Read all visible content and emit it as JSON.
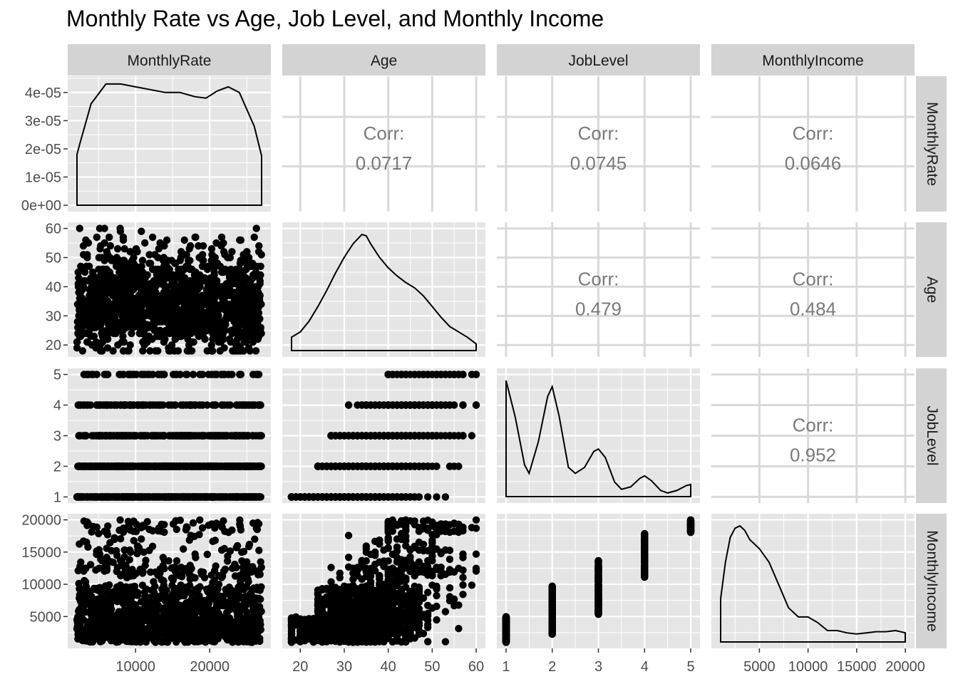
{
  "title": "Monthly Rate vs Age, Job Level, and Monthly Income",
  "chart_data": {
    "type": "scatter",
    "subtype": "pairs-matrix",
    "title": "Monthly Rate vs Age, Job Level, and Monthly Income",
    "variables": [
      "MonthlyRate",
      "Age",
      "JobLevel",
      "MonthlyIncome"
    ],
    "theme": {
      "panel_background": "#e5e5e5",
      "grid_color": "#ffffff",
      "strip_background": "#d3d3d3",
      "point_color": "#000000",
      "correlation_text_color": "#7a7a7a"
    },
    "axes": {
      "MonthlyRate": {
        "range": [
          2094,
          26999
        ],
        "ticks": [
          10000,
          20000
        ],
        "tick_labels": [
          "10000",
          "20000"
        ]
      },
      "Age": {
        "range": [
          18,
          60
        ],
        "ticks": [
          20,
          30,
          40,
          50,
          60
        ],
        "tick_labels": [
          "20",
          "30",
          "40",
          "50",
          "60"
        ]
      },
      "JobLevel": {
        "range": [
          1,
          5
        ],
        "ticks": [
          1,
          2,
          3,
          4,
          5
        ],
        "tick_labels": [
          "1",
          "2",
          "3",
          "4",
          "5"
        ]
      },
      "MonthlyIncome": {
        "range": [
          1009,
          19999
        ],
        "ticks": [
          5000,
          10000,
          15000,
          20000
        ],
        "tick_labels": [
          "5000",
          "10000",
          "15000",
          "20000"
        ]
      }
    },
    "density_axis": {
      "ylim": [
        0,
        4.5e-05
      ],
      "ticks": [
        0,
        1e-05,
        2e-05,
        3e-05,
        4e-05
      ],
      "tick_labels": [
        "0e+00",
        "1e-05",
        "2e-05",
        "3e-05",
        "4e-05"
      ]
    },
    "correlations": [
      {
        "row": "MonthlyRate",
        "col": "Age",
        "label": "Corr:",
        "value": "0.0717"
      },
      {
        "row": "MonthlyRate",
        "col": "JobLevel",
        "label": "Corr:",
        "value": "0.0745"
      },
      {
        "row": "MonthlyRate",
        "col": "MonthlyIncome",
        "label": "Corr:",
        "value": "0.0646"
      },
      {
        "row": "Age",
        "col": "JobLevel",
        "label": "Corr:",
        "value": "0.479"
      },
      {
        "row": "Age",
        "col": "MonthlyIncome",
        "label": "Corr:",
        "value": "0.484"
      },
      {
        "row": "JobLevel",
        "col": "MonthlyIncome",
        "label": "Corr:",
        "value": "0.952"
      }
    ],
    "densities": {
      "MonthlyRate": {
        "x": [
          2094,
          2500,
          4000,
          6000,
          8000,
          10000,
          12000,
          14000,
          16000,
          18000,
          19500,
          21000,
          22500,
          24000,
          26000,
          26999
        ],
        "y": [
          1.8e-05,
          2.2e-05,
          3.6e-05,
          4.3e-05,
          4.3e-05,
          4.2e-05,
          4.1e-05,
          4e-05,
          4e-05,
          3.85e-05,
          3.8e-05,
          4.05e-05,
          4.2e-05,
          4e-05,
          2.8e-05,
          1.75e-05
        ]
      },
      "Age": {
        "x": [
          18,
          20,
          22,
          24,
          26,
          28,
          30,
          32,
          34,
          35,
          36,
          38,
          40,
          42,
          44,
          46,
          48,
          50,
          52,
          54,
          56,
          58,
          60
        ],
        "y": [
          0.01,
          0.014,
          0.022,
          0.033,
          0.045,
          0.058,
          0.07,
          0.08,
          0.087,
          0.086,
          0.08,
          0.07,
          0.062,
          0.056,
          0.051,
          0.047,
          0.041,
          0.033,
          0.025,
          0.018,
          0.014,
          0.01,
          0.005
        ]
      },
      "JobLevel": {
        "x": [
          1,
          1.2,
          1.4,
          1.5,
          1.7,
          1.9,
          2.0,
          2.15,
          2.35,
          2.5,
          2.7,
          2.9,
          3.0,
          3.15,
          3.35,
          3.5,
          3.7,
          3.9,
          4.0,
          4.15,
          4.35,
          4.5,
          4.7,
          4.9,
          5
        ],
        "y": [
          0.95,
          0.65,
          0.26,
          0.19,
          0.45,
          0.82,
          0.9,
          0.66,
          0.24,
          0.19,
          0.24,
          0.37,
          0.39,
          0.32,
          0.12,
          0.06,
          0.08,
          0.15,
          0.17,
          0.13,
          0.05,
          0.03,
          0.05,
          0.09,
          0.1
        ]
      },
      "MonthlyIncome": {
        "x": [
          1009,
          1500,
          2000,
          2500,
          3000,
          3500,
          4000,
          5000,
          6000,
          7000,
          8000,
          9000,
          10000,
          11000,
          12000,
          13000,
          14000,
          15000,
          16000,
          17000,
          18000,
          19000,
          19999
        ],
        "y": [
          0.38,
          0.7,
          0.92,
          1.0,
          1.02,
          0.98,
          0.9,
          0.82,
          0.7,
          0.5,
          0.3,
          0.22,
          0.22,
          0.17,
          0.1,
          0.1,
          0.08,
          0.07,
          0.08,
          0.09,
          0.09,
          0.1,
          0.08
        ]
      }
    },
    "scatter_note": "Lower-triangle panels are scatter plots of ~1470 employee records (points sampled from the depicted distributions)."
  }
}
